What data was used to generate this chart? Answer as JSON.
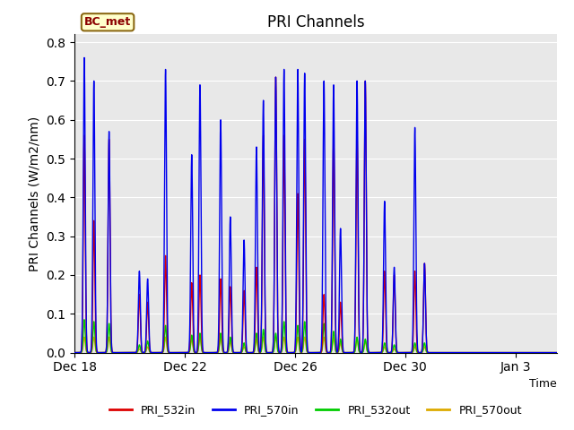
{
  "title": "PRI Channels",
  "ylabel": "PRI Channels (W/m2/nm)",
  "xlabel": "Time",
  "ylim": [
    0.0,
    0.82
  ],
  "plot_bg_color": "#e8e8e8",
  "fig_bg_color": "#ffffff",
  "legend_label": "BC_met",
  "series": {
    "PRI_532in": {
      "color": "#dd0000",
      "linewidth": 1.0,
      "zorder": 3
    },
    "PRI_570in": {
      "color": "#0000ee",
      "linewidth": 1.0,
      "zorder": 4
    },
    "PRI_532out": {
      "color": "#00cc00",
      "linewidth": 1.0,
      "zorder": 2
    },
    "PRI_570out": {
      "color": "#ddaa00",
      "linewidth": 1.0,
      "zorder": 1
    }
  },
  "start_day": 0,
  "peaks": [
    {
      "day": 0.35,
      "v532in": 0.56,
      "v570in": 0.76,
      "v532out": 0.085,
      "v570out": 0.04
    },
    {
      "day": 0.7,
      "v532in": 0.34,
      "v570in": 0.7,
      "v532out": 0.08,
      "v570out": 0.04
    },
    {
      "day": 1.25,
      "v532in": 0.55,
      "v570in": 0.57,
      "v532out": 0.075,
      "v570out": 0.04
    },
    {
      "day": 2.35,
      "v532in": 0.15,
      "v570in": 0.21,
      "v532out": 0.02,
      "v570out": 0.01
    },
    {
      "day": 2.65,
      "v532in": 0.13,
      "v570in": 0.19,
      "v532out": 0.03,
      "v570out": 0.015
    },
    {
      "day": 3.3,
      "v532in": 0.25,
      "v570in": 0.73,
      "v532out": 0.07,
      "v570out": 0.04
    },
    {
      "day": 4.25,
      "v532in": 0.18,
      "v570in": 0.51,
      "v532out": 0.045,
      "v570out": 0.035
    },
    {
      "day": 4.55,
      "v532in": 0.2,
      "v570in": 0.69,
      "v532out": 0.05,
      "v570out": 0.04
    },
    {
      "day": 5.3,
      "v532in": 0.19,
      "v570in": 0.6,
      "v532out": 0.05,
      "v570out": 0.04
    },
    {
      "day": 5.65,
      "v532in": 0.17,
      "v570in": 0.35,
      "v532out": 0.04,
      "v570out": 0.03
    },
    {
      "day": 6.15,
      "v532in": 0.16,
      "v570in": 0.29,
      "v532out": 0.025,
      "v570out": 0.015
    },
    {
      "day": 6.6,
      "v532in": 0.22,
      "v570in": 0.53,
      "v532out": 0.05,
      "v570out": 0.035
    },
    {
      "day": 6.85,
      "v532in": 0.56,
      "v570in": 0.65,
      "v532out": 0.06,
      "v570out": 0.04
    },
    {
      "day": 7.3,
      "v532in": 0.71,
      "v570in": 0.71,
      "v532out": 0.05,
      "v570out": 0.04
    },
    {
      "day": 7.6,
      "v532in": 0.56,
      "v570in": 0.73,
      "v532out": 0.08,
      "v570out": 0.04
    },
    {
      "day": 8.1,
      "v532in": 0.41,
      "v570in": 0.73,
      "v532out": 0.07,
      "v570out": 0.04
    },
    {
      "day": 8.35,
      "v532in": 0.55,
      "v570in": 0.72,
      "v532out": 0.08,
      "v570out": 0.04
    },
    {
      "day": 9.05,
      "v532in": 0.15,
      "v570in": 0.7,
      "v532out": 0.075,
      "v570out": 0.04
    },
    {
      "day": 9.4,
      "v532in": 0.55,
      "v570in": 0.69,
      "v532out": 0.055,
      "v570out": 0.04
    },
    {
      "day": 9.65,
      "v532in": 0.13,
      "v570in": 0.32,
      "v532out": 0.035,
      "v570out": 0.025
    },
    {
      "day": 10.25,
      "v532in": 0.56,
      "v570in": 0.7,
      "v532out": 0.04,
      "v570out": 0.035
    },
    {
      "day": 10.55,
      "v532in": 0.7,
      "v570in": 0.7,
      "v532out": 0.035,
      "v570out": 0.03
    },
    {
      "day": 11.25,
      "v532in": 0.21,
      "v570in": 0.39,
      "v532out": 0.025,
      "v570out": 0.015
    },
    {
      "day": 11.6,
      "v532in": 0.2,
      "v570in": 0.22,
      "v532out": 0.02,
      "v570out": 0.01
    },
    {
      "day": 12.35,
      "v532in": 0.21,
      "v570in": 0.58,
      "v532out": 0.025,
      "v570out": 0.015
    },
    {
      "day": 12.7,
      "v532in": 0.23,
      "v570in": 0.23,
      "v532out": 0.025,
      "v570out": 0.015
    }
  ],
  "xlim_days": [
    0,
    17.5
  ],
  "xtick_days": [
    0,
    4,
    8,
    12,
    16
  ],
  "xtick_labels": [
    "Dec 18",
    "Dec 22",
    "Dec 26",
    "Dec 30",
    "Jan 3"
  ],
  "sigma": 0.035
}
